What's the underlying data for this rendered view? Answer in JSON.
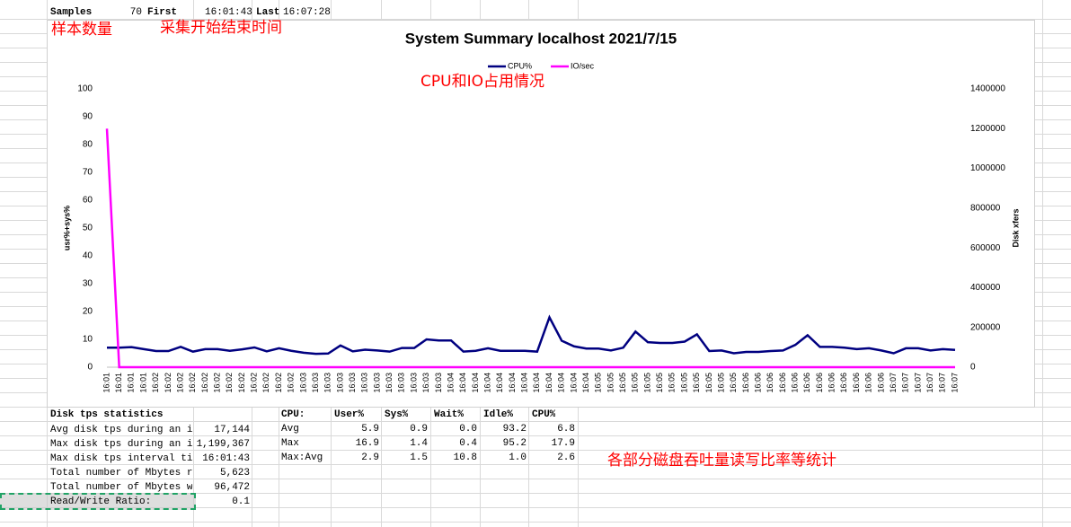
{
  "header": {
    "samples_label": "Samples",
    "samples": "70",
    "first_label": "First",
    "first": "16:01:43",
    "last_label": "Last",
    "last": "16:07:28"
  },
  "annotations": [
    "样本数量",
    "采集开始结束时间",
    "CPU和IO占用情况",
    "各部分磁盘吞吐量读写比率等统计"
  ],
  "disk_table": {
    "title": "Disk tps statistics",
    "rows": [
      [
        "Avg disk tps during an in",
        "17,144"
      ],
      [
        "Max disk tps during an in",
        "1,199,367"
      ],
      [
        "Max disk tps interval tim",
        "16:01:43"
      ],
      [
        "Total number of Mbytes re",
        "5,623"
      ],
      [
        "Total number of Mbytes wr",
        "96,472"
      ],
      [
        "Read/Write Ratio:",
        "0.1"
      ]
    ]
  },
  "cpu_table": {
    "header": [
      "CPU:",
      "User%",
      "Sys%",
      "Wait%",
      "Idle%",
      "CPU%"
    ],
    "rows": [
      [
        "Avg",
        "5.9",
        "0.9",
        "0.0",
        "93.2",
        "6.8"
      ],
      [
        "Max",
        "16.9",
        "1.4",
        "0.4",
        "95.2",
        "17.9"
      ],
      [
        "Max:Avg",
        "2.9",
        "1.5",
        "10.8",
        "1.0",
        "2.6"
      ]
    ]
  },
  "chart_data": {
    "type": "line",
    "title": "System Summary localhost  2021/7/15",
    "y_label": "usr%+sys%",
    "y2_label": "Disk xfers",
    "categories": [
      "16:01",
      "16:01",
      "16:01",
      "16:01",
      "16:02",
      "16:02",
      "16:02",
      "16:02",
      "16:02",
      "16:02",
      "16:02",
      "16:02",
      "16:02",
      "16:02",
      "16:02",
      "16:02",
      "16:03",
      "16:03",
      "16:03",
      "16:03",
      "16:03",
      "16:03",
      "16:03",
      "16:03",
      "16:03",
      "16:03",
      "16:03",
      "16:03",
      "16:04",
      "16:04",
      "16:04",
      "16:04",
      "16:04",
      "16:04",
      "16:04",
      "16:04",
      "16:04",
      "16:04",
      "16:04",
      "16:04",
      "16:05",
      "16:05",
      "16:05",
      "16:05",
      "16:05",
      "16:05",
      "16:05",
      "16:05",
      "16:05",
      "16:05",
      "16:05",
      "16:05",
      "16:06",
      "16:06",
      "16:06",
      "16:06",
      "16:06",
      "16:06",
      "16:06",
      "16:06",
      "16:06",
      "16:06",
      "16:06",
      "16:06",
      "16:07",
      "16:07",
      "16:07",
      "16:07",
      "16:07",
      "16:07"
    ],
    "series": [
      {
        "name": "CPU%",
        "color": "#000080",
        "values": [
          7.0,
          7.0,
          7.2,
          6.5,
          5.8,
          5.8,
          7.3,
          5.6,
          6.5,
          6.5,
          5.9,
          6.4,
          7.1,
          5.7,
          6.8,
          5.9,
          5.2,
          4.8,
          4.9,
          7.8,
          5.7,
          6.3,
          6.0,
          5.6,
          6.9,
          6.9,
          10.0,
          9.6,
          9.6,
          5.6,
          5.9,
          6.8,
          5.9,
          5.9,
          5.9,
          5.6,
          17.9,
          9.5,
          7.5,
          6.7,
          6.7,
          6.0,
          7.0,
          12.8,
          9.0,
          8.7,
          8.7,
          9.2,
          11.8,
          5.8,
          6.0,
          5.0,
          5.5,
          5.5,
          5.8,
          6.0,
          8.0,
          11.5,
          7.3,
          7.3,
          7.0,
          6.5,
          6.8,
          6.0,
          5.0,
          6.8,
          6.8,
          6.0,
          6.5,
          6.2
        ]
      },
      {
        "name": "IO/sec",
        "color": "#ff00ff",
        "axis": "y2",
        "values": [
          1200000,
          0,
          0,
          0,
          0,
          0,
          0,
          0,
          0,
          0,
          0,
          0,
          0,
          0,
          0,
          0,
          0,
          0,
          0,
          0,
          0,
          0,
          0,
          0,
          0,
          0,
          0,
          0,
          0,
          0,
          0,
          0,
          0,
          0,
          0,
          0,
          0,
          0,
          0,
          0,
          0,
          0,
          0,
          0,
          0,
          0,
          0,
          0,
          0,
          0,
          0,
          0,
          0,
          0,
          0,
          0,
          0,
          0,
          0,
          0,
          0,
          0,
          0,
          0,
          0,
          0,
          0,
          0,
          0,
          0
        ]
      }
    ],
    "ylim": [
      0,
      100
    ],
    "yticks": [
      0,
      10,
      20,
      30,
      40,
      50,
      60,
      70,
      80,
      90,
      100
    ],
    "y2lim": [
      0,
      1400000
    ],
    "y2ticks": [
      0,
      200000,
      400000,
      600000,
      800000,
      1000000,
      1200000,
      1400000
    ],
    "legend": "top"
  }
}
